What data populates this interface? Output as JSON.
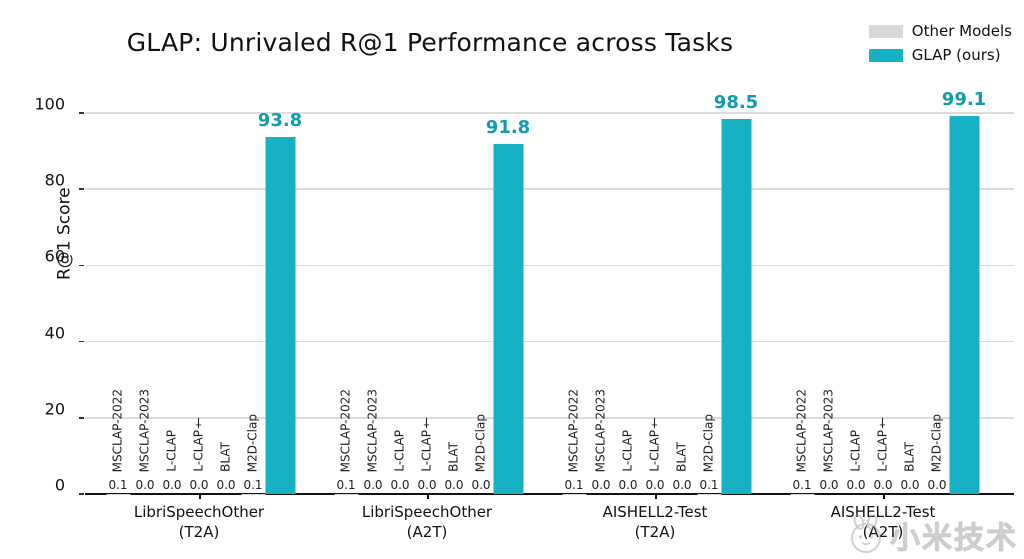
{
  "title": "GLAP: Unrivaled R@1 Performance across Tasks",
  "legend": {
    "items": [
      {
        "label": "Other Models",
        "color": "#d9d9d9"
      },
      {
        "label": "GLAP (ours)",
        "color": "#18b0c4"
      }
    ]
  },
  "watermark": {
    "text": "小米技术",
    "logo": "mitu-rabbit"
  },
  "colors": {
    "glap_bar": "#18b0c4",
    "glap_value_text": "#0d9cb0",
    "other_bar": "#d9d9d9",
    "gridline": "#dcdcdc",
    "axis": "#111111"
  },
  "chart_data": {
    "type": "bar",
    "title": "GLAP: Unrivaled R@1 Performance across Tasks",
    "xlabel": "",
    "ylabel": "R@1 Score",
    "ylim": [
      0,
      105
    ],
    "yticks": [
      0,
      20,
      40,
      60,
      80,
      100
    ],
    "grid": true,
    "legend_position": "top-right",
    "other_model_names": [
      "MSCLAP-2022",
      "MSCLAP-2023",
      "L-CLAP",
      "L-CLAP†",
      "BLAT",
      "M2D-Clap"
    ],
    "glap_series_name": "GLAP (ours)",
    "categories": [
      "LibriSpeechOther\n(T2A)",
      "LibriSpeechOther\n(A2T)",
      "AISHELL2-Test\n(T2A)",
      "AISHELL2-Test\n(A2T)"
    ],
    "groups": [
      {
        "category": "LibriSpeechOther\n(T2A)",
        "other_values": [
          0.1,
          0.0,
          0.0,
          0.0,
          0.0,
          0.1
        ],
        "glap_value": 93.8
      },
      {
        "category": "LibriSpeechOther\n(A2T)",
        "other_values": [
          0.1,
          0.0,
          0.0,
          0.0,
          0.0,
          0.0
        ],
        "glap_value": 91.8
      },
      {
        "category": "AISHELL2-Test\n(T2A)",
        "other_values": [
          0.1,
          0.0,
          0.0,
          0.0,
          0.0,
          0.1
        ],
        "glap_value": 98.5
      },
      {
        "category": "AISHELL2-Test\n(A2T)",
        "other_values": [
          0.1,
          0.0,
          0.0,
          0.0,
          0.0,
          0.0
        ],
        "glap_value": 99.1
      }
    ]
  }
}
